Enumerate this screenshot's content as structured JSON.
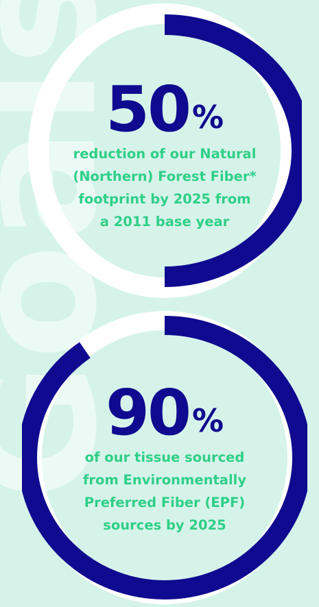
{
  "watermark": "Goals",
  "colors": {
    "background": "#d6f3ea",
    "ring_filled": "#0f0a8f",
    "ring_track": "#ffffff",
    "number_text": "#0f0a8f",
    "description_text": "#2fcf87"
  },
  "goals": [
    {
      "value": "50",
      "unit": "%",
      "progress": 0.5,
      "description": [
        "reduction of our Natural",
        "(Northern) Forest Fiber*",
        "footprint by 2025 from",
        "a 2011 base year"
      ]
    },
    {
      "value": "90",
      "unit": "%",
      "progress": 0.9,
      "description": [
        "of our tissue sourced",
        "from Environmentally",
        "Preferred Fiber (EPF)",
        "sources by 2025"
      ]
    }
  ]
}
